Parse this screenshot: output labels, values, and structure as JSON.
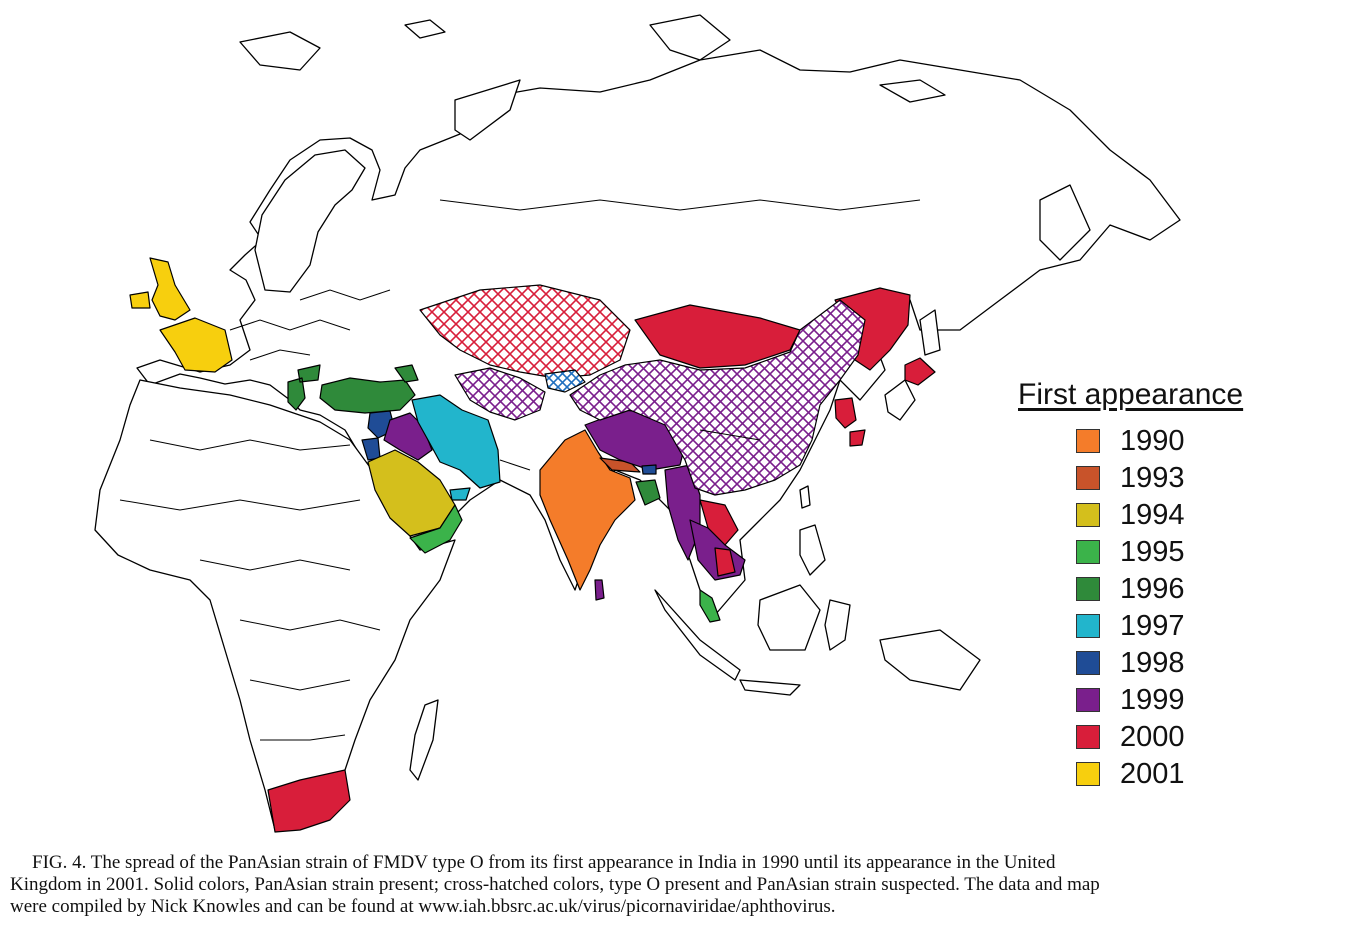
{
  "legend": {
    "title": "First appearance",
    "items": [
      {
        "year": "1990",
        "color": "#f47c2a"
      },
      {
        "year": "1993",
        "color": "#c8532a"
      },
      {
        "year": "1994",
        "color": "#d4bf1c"
      },
      {
        "year": "1995",
        "color": "#3bb34a"
      },
      {
        "year": "1996",
        "color": "#2f8a3a"
      },
      {
        "year": "1997",
        "color": "#22b5cc"
      },
      {
        "year": "1998",
        "color": "#1f4c96"
      },
      {
        "year": "1999",
        "color": "#7a1f8c"
      },
      {
        "year": "2000",
        "color": "#d81e3a"
      },
      {
        "year": "2001",
        "color": "#f7cf0e"
      }
    ]
  },
  "map_regions": {
    "solid": [
      {
        "region": "United Kingdom and Ireland",
        "year": "2001"
      },
      {
        "region": "France",
        "year": "2001"
      },
      {
        "region": "South Africa",
        "year": "2000"
      },
      {
        "region": "Greece and Balkans",
        "year": "1996"
      },
      {
        "region": "Turkey",
        "year": "1996"
      },
      {
        "region": "Caucasus",
        "year": "1996"
      },
      {
        "region": "Syria and Lebanon",
        "year": "1998"
      },
      {
        "region": "Israel and Jordan",
        "year": "1998"
      },
      {
        "region": "Iraq",
        "year": "1999"
      },
      {
        "region": "Iran",
        "year": "1997"
      },
      {
        "region": "United Arab Emirates",
        "year": "1997"
      },
      {
        "region": "Saudi Arabia",
        "year": "1994"
      },
      {
        "region": "Yemen and Oman",
        "year": "1995"
      },
      {
        "region": "India",
        "year": "1990"
      },
      {
        "region": "Nepal",
        "year": "1993"
      },
      {
        "region": "Tibet",
        "year": "1999"
      },
      {
        "region": "Bhutan",
        "year": "1998"
      },
      {
        "region": "Bangladesh",
        "year": "1996"
      },
      {
        "region": "Sri Lanka",
        "year": "1999"
      },
      {
        "region": "Myanmar",
        "year": "1999"
      },
      {
        "region": "Laos",
        "year": "2000"
      },
      {
        "region": "Thailand and Cambodia",
        "year": "1999"
      },
      {
        "region": "Malaysia",
        "year": "1995"
      },
      {
        "region": "Mongolia",
        "year": "2000"
      },
      {
        "region": "Russian Far East",
        "year": "2000"
      },
      {
        "region": "Korea",
        "year": "2000"
      },
      {
        "region": "Japan",
        "year": "2000"
      }
    ],
    "hatched": [
      {
        "region": "Kazakhstan",
        "year": "2000"
      },
      {
        "region": "Central Asia",
        "year": "1999"
      },
      {
        "region": "Kyrgyzstan",
        "year": "1997"
      },
      {
        "region": "China",
        "year": "1999"
      }
    ]
  },
  "caption": {
    "line1": "FIG. 4. The spread of the PanAsian strain of FMDV type O from its first appearance in India in 1990 until its appearance in the United",
    "line2": "Kingdom in 2001. Solid colors, PanAsian strain present; cross-hatched colors, type O present and PanAsian strain suspected. The data and map",
    "line3": "were compiled by Nick Knowles and can be found at www.iah.bbsrc.ac.uk/virus/picornaviridae/aphthovirus."
  }
}
